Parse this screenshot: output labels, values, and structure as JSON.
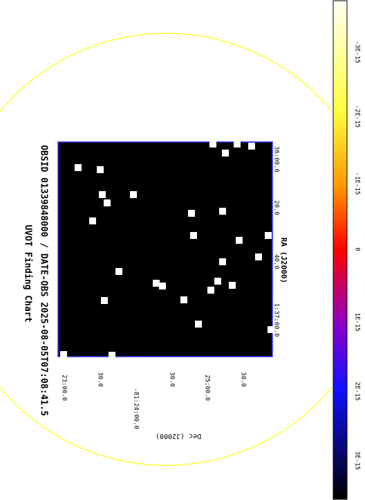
{
  "title": "UVOT Finding Chart",
  "subtitle": "OBSID 01339848000 / DATE-OBS 2025-08-05T07:08:41.5",
  "ra_axis": {
    "label": "RA (J2000)",
    "ticks": [
      "36:00.0",
      "20.0",
      "40.0",
      "1:37:00.0"
    ]
  },
  "dec_axis": {
    "label": "Dec (J2000)",
    "ticks": [
      "23:00.0",
      "30.0",
      "-81:24:00.0",
      "30.0",
      "25:00.0",
      "30.0"
    ]
  },
  "colorbar": {
    "ticks": [
      "-3E-15",
      "-2E-15",
      "-1E-15",
      "0",
      "1E-15",
      "2E-15",
      "3E-15"
    ]
  }
}
